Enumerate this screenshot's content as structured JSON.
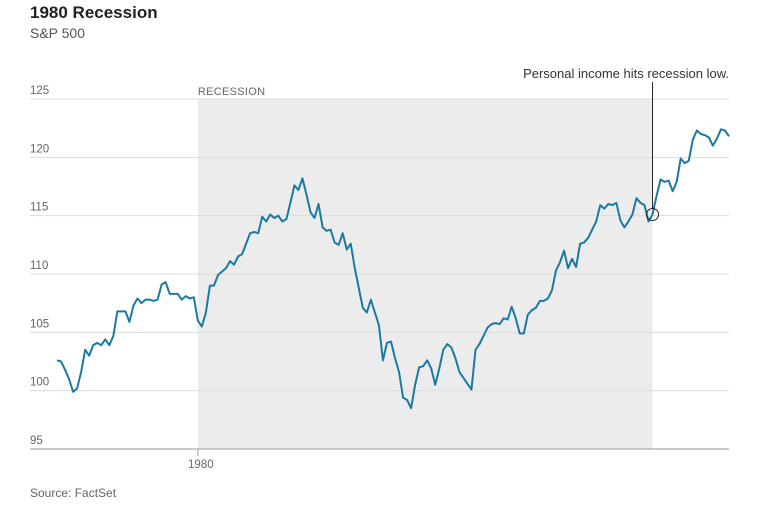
{
  "chart_data": {
    "type": "line",
    "title": "1980 Recession",
    "subtitle": "S&P 500",
    "source": "Source: FactSet",
    "ylim": [
      95,
      125
    ],
    "yticks": [
      95,
      100,
      105,
      110,
      115,
      120,
      125
    ],
    "grid": true,
    "recession": {
      "label": "RECESSION",
      "start": 35,
      "end": 148
    },
    "annotation": {
      "text": "Personal income hits recession low.",
      "index": 148
    },
    "categories": [
      null,
      null,
      null,
      null,
      null,
      null,
      null,
      null,
      null,
      null,
      null,
      null,
      null,
      null,
      null,
      null,
      null,
      null,
      null,
      null,
      null,
      null,
      null,
      null,
      null,
      null,
      null,
      null,
      null,
      null,
      null,
      null,
      null,
      null,
      null,
      "1980",
      null,
      null,
      null,
      null,
      null,
      null,
      null,
      null,
      null,
      null,
      null,
      null,
      null,
      null,
      null,
      null,
      null,
      null,
      null,
      null,
      null,
      null,
      null,
      null,
      null,
      null,
      null,
      null,
      null,
      null,
      null,
      null,
      null,
      null,
      null,
      null,
      null,
      null,
      null,
      null,
      null,
      null,
      null,
      null,
      null,
      null,
      null,
      null,
      null,
      null,
      null,
      null,
      null,
      null,
      null,
      null,
      null,
      null,
      null,
      null,
      null,
      null,
      null,
      null,
      null,
      null,
      null,
      null,
      null,
      null,
      null,
      null,
      null,
      null,
      null,
      null,
      null,
      null,
      null,
      null,
      null,
      null,
      null,
      null,
      null,
      null,
      null,
      null,
      null,
      null,
      null,
      null,
      null,
      null,
      null,
      null,
      null,
      null,
      null,
      null,
      null,
      null,
      null,
      null,
      null,
      null,
      null,
      null,
      null,
      null,
      null,
      null,
      null,
      null,
      null,
      null,
      null,
      null,
      null,
      null,
      null,
      null,
      null,
      null,
      null,
      null,
      null,
      null,
      null,
      null,
      null,
      null
    ],
    "series": [
      {
        "name": "S&P 500",
        "color": "#1b7aa2",
        "values": [
          102.6,
          102.5,
          101.8,
          101,
          99.9,
          100.2,
          101.6,
          103.5,
          103.0,
          103.9,
          104.1,
          103.9,
          104.4,
          103.9,
          104.7,
          106.8,
          106.8,
          106.8,
          105.9,
          107.3,
          107.9,
          107.5,
          107.8,
          107.8,
          107.7,
          107.8,
          109.1,
          109.3,
          108.3,
          108.3,
          108.3,
          107.8,
          108.1,
          107.9,
          108,
          106,
          105.5,
          106.7,
          109,
          109,
          109.9,
          110.2,
          110.5,
          111.1,
          110.8,
          111.5,
          111.7,
          112.6,
          113.5,
          113.6,
          113.5,
          114.9,
          114.5,
          115.1,
          114.8,
          115,
          114.5,
          114.7,
          116.1,
          117.6,
          117.2,
          118.2,
          116.8,
          115.3,
          114.8,
          116,
          114,
          113.7,
          113.8,
          112.7,
          112.5,
          113.5,
          112.1,
          112.6,
          110.5,
          108.8,
          107.1,
          106.7,
          107.8,
          106.7,
          105.6,
          102.6,
          104.1,
          104.2,
          102.8,
          101.6,
          99.4,
          99.2,
          98.5,
          100.5,
          102,
          102.1,
          102.6,
          101.9,
          100.5,
          101.9,
          103.5,
          104,
          103.7,
          102.8,
          101.6,
          101.1,
          100.6,
          100.1,
          103.5,
          104,
          104.7,
          105.4,
          105.7,
          105.8,
          105.7,
          106.2,
          106.1,
          107.2,
          106.2,
          104.9,
          104.9,
          106.5,
          106.9,
          107.1,
          107.7,
          107.7,
          107.9,
          108.6,
          110.3,
          111,
          112,
          110.5,
          111.3,
          110.6,
          112.6,
          112.7,
          113.1,
          113.8,
          114.5,
          115.9,
          115.6,
          116,
          115.9,
          116.1,
          114.6,
          114,
          114.5,
          115.1,
          116.5,
          116.1,
          115.9,
          114.5,
          115.1,
          116.7,
          118.1,
          117.9,
          118,
          117.1,
          117.9,
          119.9,
          119.5,
          119.7,
          121.5,
          122.3,
          122,
          121.9,
          121.7,
          121,
          121.6,
          122.4,
          122.3,
          121.8
        ]
      }
    ]
  }
}
